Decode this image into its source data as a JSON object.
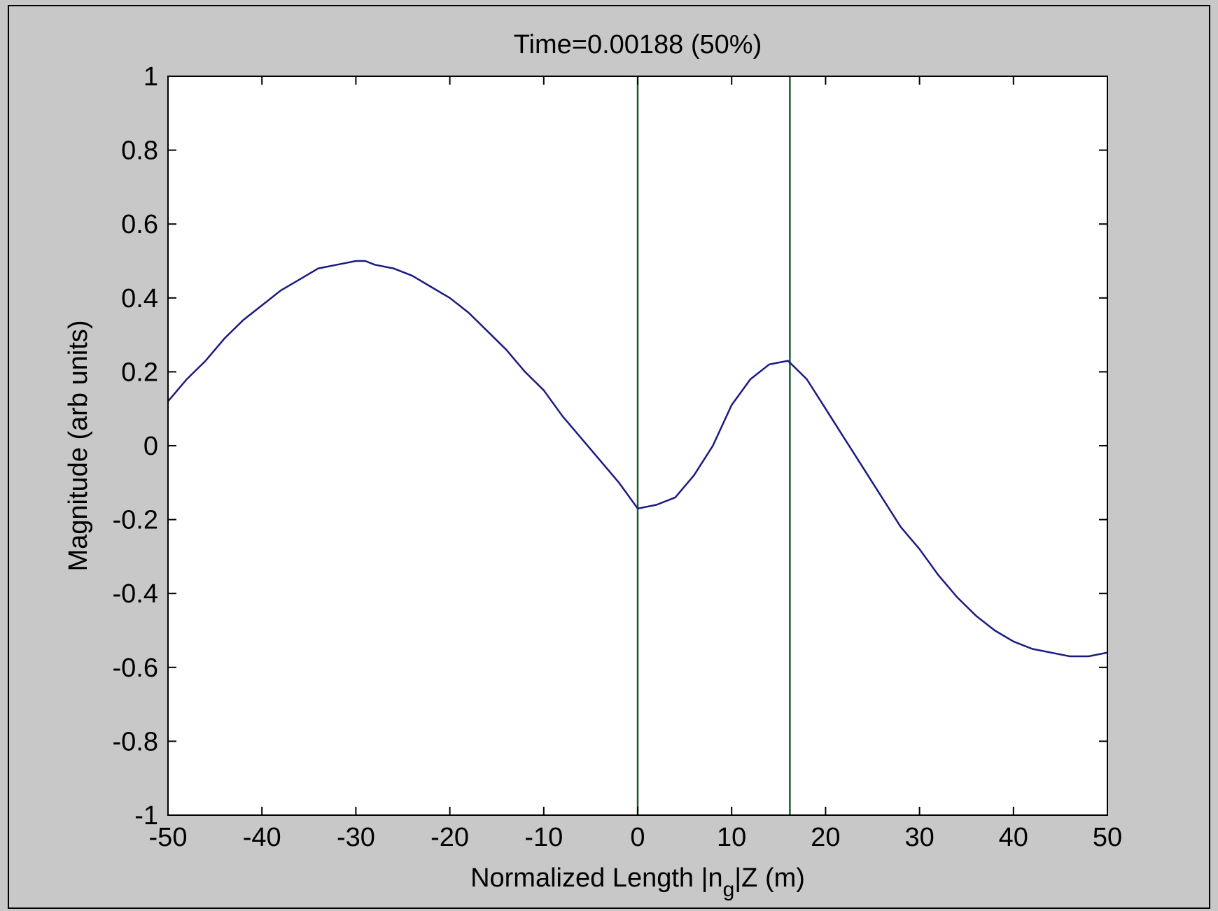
{
  "colors": {
    "figure_background": "#c8c8c8",
    "plot_background": "#ffffff",
    "series_line": "#1a1a80",
    "marker_lines": "#1f5c2a",
    "axes": "#000000"
  },
  "chart_data": {
    "type": "line",
    "title": "Time=0.00188   (50%)",
    "xlabel_parts": {
      "before": "Normalized Length |n",
      "subscript": "g",
      "after": "|Z (m)"
    },
    "ylabel": "Magnitude (arb units)",
    "xlim": [
      -50,
      50
    ],
    "ylim": [
      -1,
      1
    ],
    "xticks": [
      -50,
      -40,
      -30,
      -20,
      -10,
      0,
      10,
      20,
      30,
      40,
      50
    ],
    "xtick_labels": [
      "-50",
      "-40",
      "-30",
      "-20",
      "-10",
      "0",
      "10",
      "20",
      "30",
      "40",
      "50"
    ],
    "yticks": [
      1,
      0.8,
      0.6,
      0.4,
      0.2,
      0,
      -0.2,
      -0.4,
      -0.6,
      -0.8,
      -1
    ],
    "ytick_labels": [
      "1",
      "0.8",
      "0.6",
      "0.4",
      "0.2",
      "0",
      "-0.2",
      "-0.4",
      "-0.6",
      "-0.8",
      "-1"
    ],
    "grid": false,
    "series": [
      {
        "x": [
          -50,
          -48,
          -46,
          -44,
          -42,
          -40,
          -38,
          -36,
          -34,
          -32,
          -30,
          -29,
          -28,
          -26,
          -24,
          -22,
          -20,
          -18,
          -16,
          -14,
          -12,
          -10,
          -8,
          -6,
          -4,
          -2,
          0,
          2,
          4,
          6,
          8,
          10,
          12,
          14,
          16,
          18,
          20,
          22,
          24,
          26,
          28,
          30,
          32,
          34,
          36,
          38,
          40,
          42,
          44,
          46,
          48,
          50
        ],
        "y": [
          0.12,
          0.18,
          0.23,
          0.29,
          0.34,
          0.38,
          0.42,
          0.45,
          0.48,
          0.49,
          0.5,
          0.5,
          0.49,
          0.48,
          0.46,
          0.43,
          0.4,
          0.36,
          0.31,
          0.26,
          0.2,
          0.15,
          0.08,
          0.02,
          -0.04,
          -0.1,
          -0.17,
          -0.16,
          -0.14,
          -0.08,
          0.0,
          0.11,
          0.18,
          0.22,
          0.23,
          0.18,
          0.1,
          0.02,
          -0.06,
          -0.14,
          -0.22,
          -0.28,
          -0.35,
          -0.41,
          -0.46,
          -0.5,
          -0.53,
          -0.55,
          -0.56,
          -0.57,
          -0.57,
          -0.56
        ]
      }
    ],
    "vertical_lines": [
      0,
      16.2
    ]
  }
}
